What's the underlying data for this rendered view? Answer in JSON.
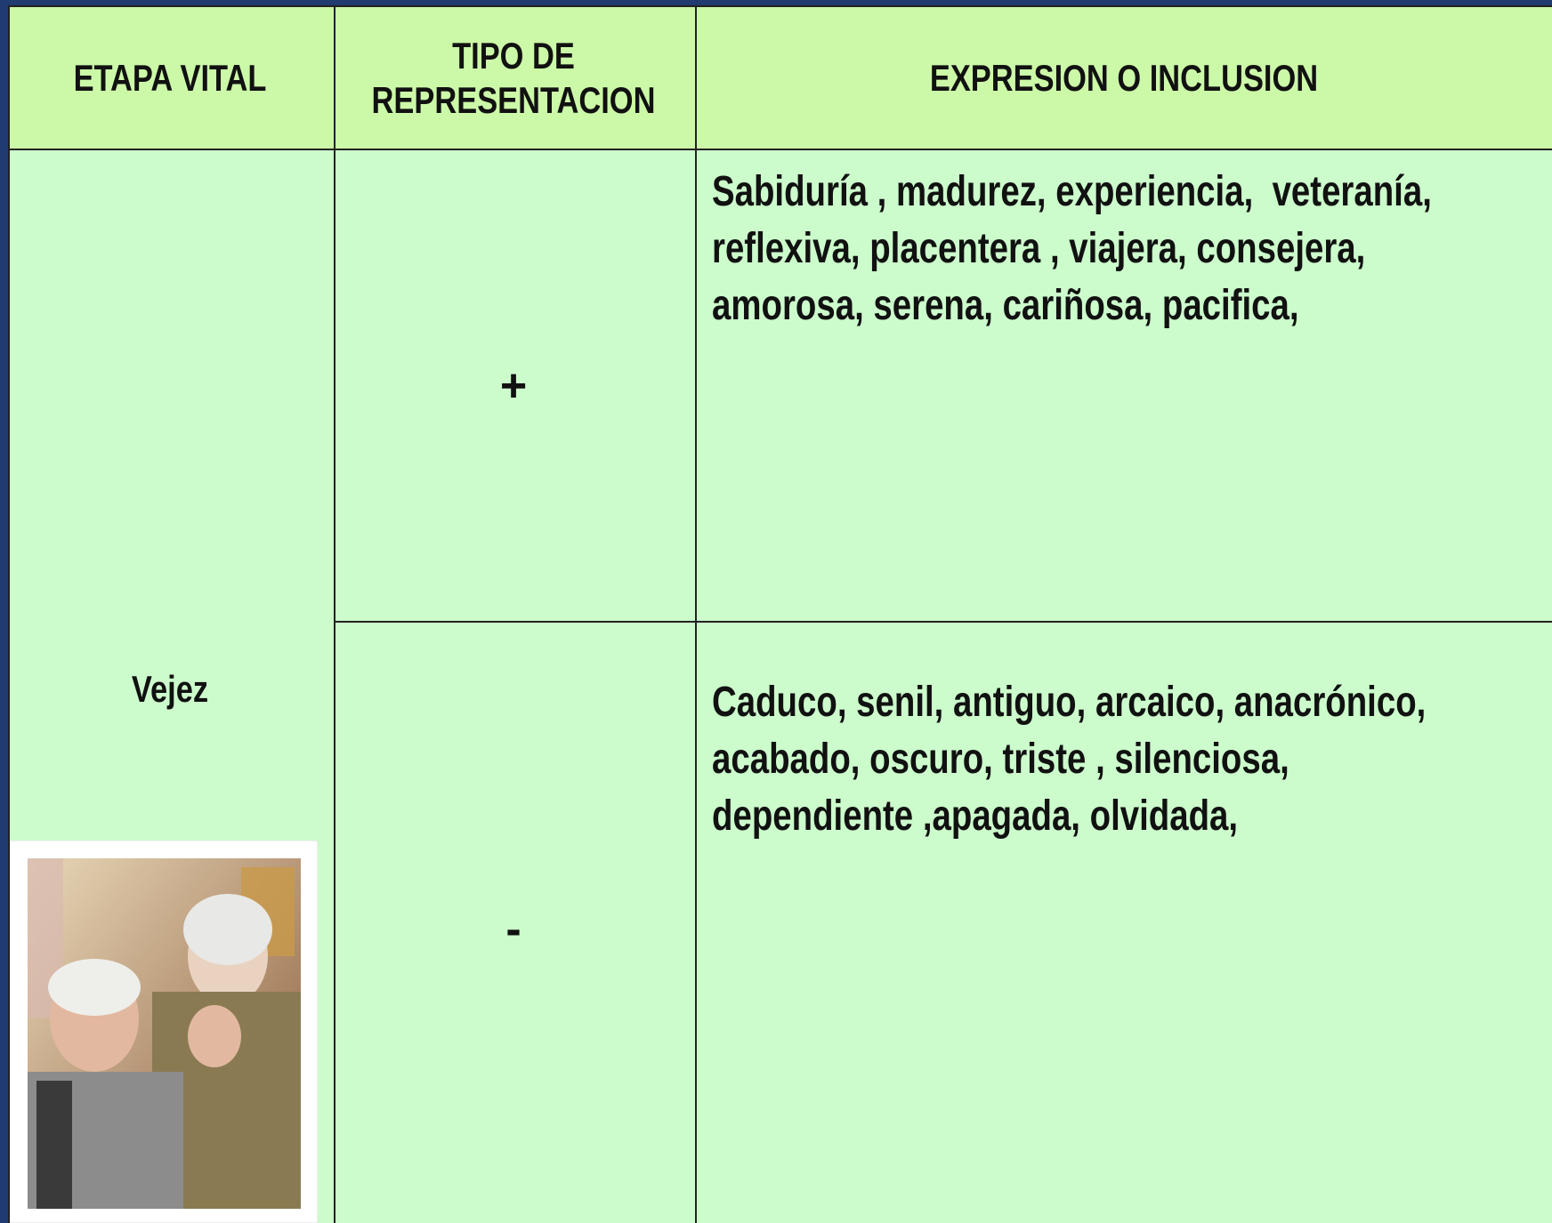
{
  "table": {
    "columns": [
      "ETAPA VITAL",
      "TIPO DE\nREPRESENTACION",
      "EXPRESION O INCLUSION"
    ],
    "stage": "Vejez",
    "rows": [
      {
        "type": "+",
        "expression": [
          "Sabiduría , madurez, experiencia,  veteranía,",
          "reflexiva, placentera , viajera, consejera,",
          "amorosa, serena, cariñosa, pacifica,"
        ]
      },
      {
        "type": "-",
        "expression": [
          "Caduco, senil, antiguo, arcaico, anacrónico,",
          "acabado, oscuro, triste , silenciosa,",
          "dependiente ,apagada, olvidada,"
        ]
      }
    ]
  }
}
